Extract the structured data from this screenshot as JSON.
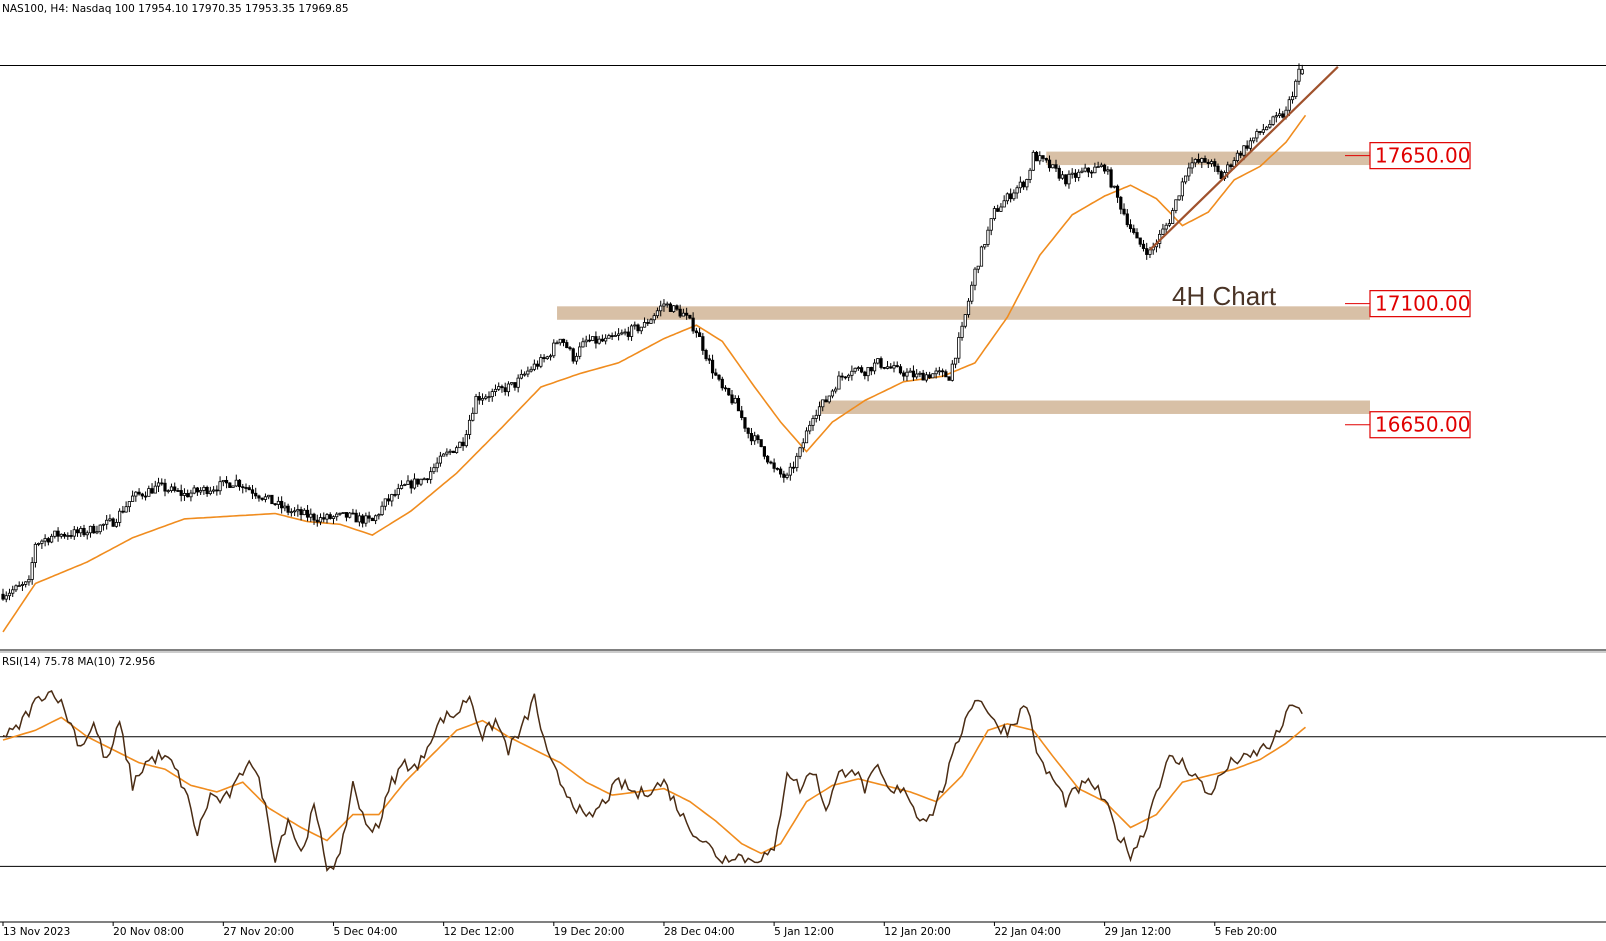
{
  "header": {
    "symbol_line": "NAS100, H4:  Nasdaq 100  17954.10 17970.35 17953.35 17969.85",
    "rsi_line": "RSI(14) 75.78 MA(10) 72.956"
  },
  "colors": {
    "background": "#ffffff",
    "candle_up": "#ffffff",
    "candle_down": "#000000",
    "candle_outline": "#000000",
    "moving_average": "#f08c1e",
    "zone_fill": "#d8c0a6",
    "trendline": "#a0522d",
    "level_label": "#e00000",
    "rsi_line": "#4a2c14",
    "rsi_ma": "#f08c1e"
  },
  "chart_data": [
    {
      "type": "candlestick",
      "symbol": "NAS100",
      "timeframe": "H4",
      "title": "NAS100, H4:  Nasdaq 100",
      "last_bar": {
        "open": 17954.1,
        "high": 17970.35,
        "low": 17953.35,
        "close": 17969.85
      },
      "ylim": [
        15850,
        18050
      ],
      "x_tick_labels": [
        "13 Nov 2023",
        "20 Nov 08:00",
        "27 Nov 20:00",
        "5 Dec 04:00",
        "12 Dec 12:00",
        "19 Dec 20:00",
        "28 Dec 04:00",
        "5 Jan 12:00",
        "12 Jan 20:00",
        "22 Jan 04:00",
        "29 Jan 12:00",
        "5 Feb 20:00"
      ],
      "x_tick_index": [
        0,
        34,
        68,
        102,
        136,
        170,
        204,
        238,
        272,
        306,
        340,
        374
      ],
      "bar_count": 402,
      "price_anchors": [
        [
          0,
          16020
        ],
        [
          8,
          16060
        ],
        [
          10,
          16210
        ],
        [
          16,
          16240
        ],
        [
          25,
          16250
        ],
        [
          34,
          16290
        ],
        [
          40,
          16380
        ],
        [
          48,
          16420
        ],
        [
          56,
          16390
        ],
        [
          66,
          16420
        ],
        [
          72,
          16440
        ],
        [
          82,
          16370
        ],
        [
          88,
          16330
        ],
        [
          98,
          16300
        ],
        [
          106,
          16310
        ],
        [
          114,
          16290
        ],
        [
          118,
          16360
        ],
        [
          124,
          16420
        ],
        [
          130,
          16450
        ],
        [
          136,
          16530
        ],
        [
          142,
          16590
        ],
        [
          146,
          16750
        ],
        [
          152,
          16770
        ],
        [
          158,
          16800
        ],
        [
          163,
          16860
        ],
        [
          168,
          16900
        ],
        [
          172,
          16980
        ],
        [
          176,
          16900
        ],
        [
          180,
          16960
        ],
        [
          186,
          16960
        ],
        [
          192,
          16990
        ],
        [
          198,
          17020
        ],
        [
          204,
          17100
        ],
        [
          210,
          17060
        ],
        [
          214,
          17000
        ],
        [
          218,
          16880
        ],
        [
          222,
          16780
        ],
        [
          226,
          16730
        ],
        [
          230,
          16620
        ],
        [
          234,
          16570
        ],
        [
          238,
          16480
        ],
        [
          242,
          16450
        ],
        [
          246,
          16550
        ],
        [
          250,
          16690
        ],
        [
          254,
          16740
        ],
        [
          258,
          16820
        ],
        [
          262,
          16860
        ],
        [
          266,
          16850
        ],
        [
          270,
          16880
        ],
        [
          276,
          16850
        ],
        [
          282,
          16830
        ],
        [
          288,
          16840
        ],
        [
          292,
          16830
        ],
        [
          296,
          17000
        ],
        [
          300,
          17220
        ],
        [
          306,
          17440
        ],
        [
          312,
          17520
        ],
        [
          316,
          17560
        ],
        [
          318,
          17650
        ],
        [
          322,
          17620
        ],
        [
          328,
          17560
        ],
        [
          334,
          17590
        ],
        [
          340,
          17610
        ],
        [
          344,
          17490
        ],
        [
          350,
          17330
        ],
        [
          354,
          17290
        ],
        [
          360,
          17410
        ],
        [
          366,
          17620
        ],
        [
          372,
          17630
        ],
        [
          376,
          17570
        ],
        [
          380,
          17640
        ],
        [
          384,
          17690
        ],
        [
          390,
          17760
        ],
        [
          396,
          17810
        ],
        [
          400,
          17960
        ],
        [
          401,
          17970
        ]
      ],
      "moving_average_anchors": [
        [
          0,
          15880
        ],
        [
          10,
          16060
        ],
        [
          26,
          16140
        ],
        [
          40,
          16230
        ],
        [
          56,
          16300
        ],
        [
          70,
          16310
        ],
        [
          84,
          16320
        ],
        [
          94,
          16290
        ],
        [
          104,
          16280
        ],
        [
          114,
          16240
        ],
        [
          126,
          16330
        ],
        [
          140,
          16470
        ],
        [
          154,
          16640
        ],
        [
          166,
          16790
        ],
        [
          178,
          16840
        ],
        [
          190,
          16880
        ],
        [
          204,
          16970
        ],
        [
          214,
          17020
        ],
        [
          222,
          16960
        ],
        [
          232,
          16790
        ],
        [
          240,
          16660
        ],
        [
          248,
          16550
        ],
        [
          256,
          16660
        ],
        [
          266,
          16740
        ],
        [
          278,
          16810
        ],
        [
          290,
          16830
        ],
        [
          300,
          16880
        ],
        [
          310,
          17050
        ],
        [
          320,
          17280
        ],
        [
          330,
          17430
        ],
        [
          340,
          17500
        ],
        [
          348,
          17540
        ],
        [
          356,
          17490
        ],
        [
          364,
          17390
        ],
        [
          372,
          17440
        ],
        [
          380,
          17560
        ],
        [
          388,
          17610
        ],
        [
          396,
          17700
        ],
        [
          402,
          17800
        ]
      ],
      "support_resistance_levels": [
        {
          "label": "17650.00",
          "value": 17650,
          "zone": [
            17615,
            17665
          ],
          "from_index": 322
        },
        {
          "label": "17100.00",
          "value": 17100,
          "zone": [
            17040,
            17090
          ],
          "from_index": 171
        },
        {
          "label": "16650.00",
          "value": 16650,
          "zone": [
            16690,
            16740
          ],
          "from_index": 252
        }
      ],
      "top_reference_line": 17985,
      "trendline": {
        "from": [
          354,
          17300
        ],
        "to": [
          412,
          17980
        ]
      },
      "annotations": [
        "4H Chart"
      ]
    },
    {
      "type": "line",
      "title": "RSI(14) 75.78 MA(10) 72.956",
      "ylim": [
        15,
        90
      ],
      "reference_levels": [
        70,
        30
      ],
      "series": [
        {
          "name": "RSI(14)",
          "last_value": 75.78,
          "anchors": [
            [
              0,
              70
            ],
            [
              4,
              72
            ],
            [
              8,
              78
            ],
            [
              12,
              83
            ],
            [
              16,
              84
            ],
            [
              20,
              76
            ],
            [
              24,
              67
            ],
            [
              28,
              74
            ],
            [
              32,
              62
            ],
            [
              36,
              74
            ],
            [
              40,
              55
            ],
            [
              44,
              62
            ],
            [
              48,
              64
            ],
            [
              52,
              62
            ],
            [
              56,
              54
            ],
            [
              60,
              40
            ],
            [
              64,
              52
            ],
            [
              68,
              50
            ],
            [
              72,
              55
            ],
            [
              76,
              64
            ],
            [
              80,
              53
            ],
            [
              84,
              33
            ],
            [
              88,
              45
            ],
            [
              92,
              34
            ],
            [
              96,
              48
            ],
            [
              100,
              30
            ],
            [
              104,
              32
            ],
            [
              108,
              56
            ],
            [
              112,
              42
            ],
            [
              116,
              43
            ],
            [
              120,
              56
            ],
            [
              124,
              62
            ],
            [
              128,
              60
            ],
            [
              132,
              70
            ],
            [
              136,
              76
            ],
            [
              140,
              77
            ],
            [
              144,
              83
            ],
            [
              148,
              70
            ],
            [
              152,
              75
            ],
            [
              156,
              66
            ],
            [
              160,
              72
            ],
            [
              164,
              82
            ],
            [
              168,
              64
            ],
            [
              172,
              56
            ],
            [
              176,
              50
            ],
            [
              180,
              44
            ],
            [
              184,
              48
            ],
            [
              190,
              56
            ],
            [
              196,
              52
            ],
            [
              200,
              54
            ],
            [
              204,
              56
            ],
            [
              210,
              45
            ],
            [
              214,
              40
            ],
            [
              218,
              36
            ],
            [
              222,
              32
            ],
            [
              226,
              34
            ],
            [
              230,
              32
            ],
            [
              234,
              33
            ],
            [
              238,
              34
            ],
            [
              242,
              60
            ],
            [
              246,
              54
            ],
            [
              250,
              60
            ],
            [
              254,
              48
            ],
            [
              258,
              58
            ],
            [
              262,
              61
            ],
            [
              266,
              54
            ],
            [
              270,
              60
            ],
            [
              274,
              52
            ],
            [
              278,
              55
            ],
            [
              282,
              46
            ],
            [
              286,
              45
            ],
            [
              290,
              54
            ],
            [
              294,
              66
            ],
            [
              298,
              79
            ],
            [
              302,
              82
            ],
            [
              306,
              74
            ],
            [
              310,
              72
            ],
            [
              316,
              80
            ],
            [
              320,
              62
            ],
            [
              324,
              57
            ],
            [
              328,
              50
            ],
            [
              332,
              54
            ],
            [
              336,
              56
            ],
            [
              340,
              50
            ],
            [
              344,
              40
            ],
            [
              348,
              34
            ],
            [
              352,
              40
            ],
            [
              356,
              54
            ],
            [
              360,
              63
            ],
            [
              364,
              62
            ],
            [
              368,
              58
            ],
            [
              372,
              52
            ],
            [
              376,
              58
            ],
            [
              380,
              63
            ],
            [
              384,
              63
            ],
            [
              388,
              66
            ],
            [
              392,
              68
            ],
            [
              396,
              76
            ],
            [
              398,
              81
            ],
            [
              400,
              79
            ],
            [
              401,
              75.78
            ]
          ]
        },
        {
          "name": "MA(10)",
          "last_value": 72.956,
          "anchors": [
            [
              0,
              69
            ],
            [
              10,
              72
            ],
            [
              18,
              76
            ],
            [
              26,
              70
            ],
            [
              34,
              66
            ],
            [
              42,
              62
            ],
            [
              50,
              60
            ],
            [
              58,
              55
            ],
            [
              66,
              53
            ],
            [
              74,
              56
            ],
            [
              82,
              48
            ],
            [
              92,
              42
            ],
            [
              100,
              38
            ],
            [
              108,
              46
            ],
            [
              116,
              46
            ],
            [
              124,
              56
            ],
            [
              132,
              64
            ],
            [
              140,
              72
            ],
            [
              148,
              75
            ],
            [
              156,
              70
            ],
            [
              164,
              66
            ],
            [
              172,
              62
            ],
            [
              180,
              56
            ],
            [
              188,
              52
            ],
            [
              196,
              53
            ],
            [
              204,
              54
            ],
            [
              212,
              50
            ],
            [
              220,
              44
            ],
            [
              228,
              37
            ],
            [
              234,
              34
            ],
            [
              240,
              37
            ],
            [
              248,
              50
            ],
            [
              256,
              55
            ],
            [
              264,
              57
            ],
            [
              272,
              55
            ],
            [
              280,
              53
            ],
            [
              288,
              50
            ],
            [
              296,
              58
            ],
            [
              304,
              72
            ],
            [
              310,
              74
            ],
            [
              318,
              72
            ],
            [
              324,
              64
            ],
            [
              332,
              54
            ],
            [
              340,
              50
            ],
            [
              348,
              42
            ],
            [
              356,
              46
            ],
            [
              364,
              56
            ],
            [
              372,
              58
            ],
            [
              380,
              60
            ],
            [
              388,
              63
            ],
            [
              396,
              68
            ],
            [
              402,
              72.956
            ]
          ]
        }
      ]
    }
  ]
}
